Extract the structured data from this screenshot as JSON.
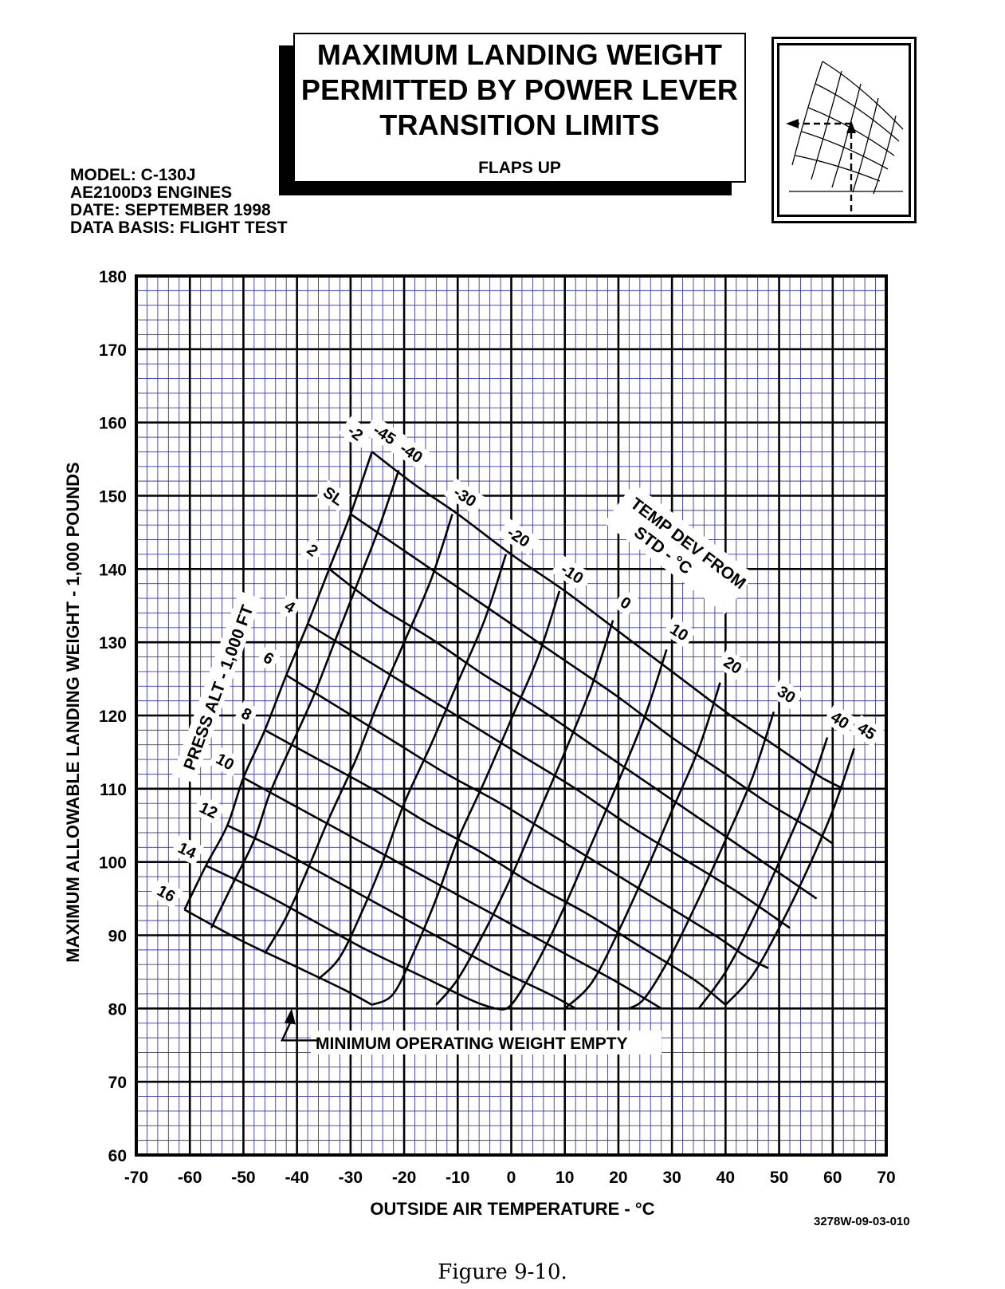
{
  "title": {
    "lines": [
      "MAXIMUM LANDING WEIGHT",
      "PERMITTED BY POWER LEVER",
      "TRANSITION LIMITS"
    ],
    "subtitle": "FLAPS UP"
  },
  "meta": [
    "MODEL: C-130J",
    "AE2100D3 ENGINES",
    "DATE: SEPTEMBER 1998",
    "DATA BASIS: FLIGHT TEST"
  ],
  "figure_caption": "Figure 9-10.",
  "chart_id": "3278W-09-03-010",
  "colors": {
    "grid_fine": "#3a3aa8",
    "ink": "#000000",
    "background": "#ffffff"
  },
  "chart_data": {
    "type": "line",
    "title": "MAXIMUM LANDING WEIGHT PERMITTED BY POWER LEVER TRANSITION LIMITS",
    "subtitle": "FLAPS UP",
    "xlabel": "OUTSIDE AIR TEMPERATURE - °C",
    "ylabel": "MAXIMUM ALLOWABLE LANDING WEIGHT - 1,000 POUNDS",
    "xlim": [
      -70,
      70
    ],
    "ylim": [
      60,
      180
    ],
    "x_ticks": [
      -70,
      -60,
      -50,
      -40,
      -30,
      -20,
      -10,
      0,
      10,
      20,
      30,
      40,
      50,
      60,
      70
    ],
    "y_ticks": [
      60,
      70,
      80,
      90,
      100,
      110,
      120,
      130,
      140,
      150,
      160,
      170,
      180
    ],
    "x_tick_labels": [
      "-70",
      "-60",
      "-50",
      "-40",
      "-30",
      "-20",
      "-10",
      "0",
      "10",
      "20",
      "30",
      "40",
      "50",
      "60",
      "70"
    ],
    "y_tick_labels": [
      "60",
      "70",
      "80",
      "90",
      "100",
      "110",
      "120",
      "130",
      "140",
      "150",
      "160",
      "170",
      "180"
    ],
    "grid": true,
    "grid_minor_step": {
      "x": 2,
      "y": 2
    },
    "pressure_altitude_curves": {
      "label": "PRESS ALT - 1,000 FT",
      "series": [
        {
          "name": "-2",
          "points": [
            [
              -26,
              156
            ],
            [
              -18,
              151.5
            ],
            [
              -10,
              147.5
            ],
            [
              0,
              142
            ],
            [
              10,
              137
            ],
            [
              20,
              131.5
            ],
            [
              30,
              126
            ],
            [
              40,
              120.5
            ],
            [
              48,
              116.5
            ],
            [
              54,
              113.5
            ],
            [
              58,
              111.5
            ],
            [
              62,
              110
            ]
          ]
        },
        {
          "name": "SL",
          "points": [
            [
              -30,
              147.5
            ],
            [
              -20,
              142.5
            ],
            [
              -10,
              137.5
            ],
            [
              0,
              132.5
            ],
            [
              10,
              127.5
            ],
            [
              20,
              122.5
            ],
            [
              30,
              117
            ],
            [
              40,
              112
            ],
            [
              48,
              108
            ],
            [
              56,
              104.5
            ],
            [
              60,
              102.5
            ]
          ]
        },
        {
          "name": "2",
          "points": [
            [
              -34,
              140
            ],
            [
              -25,
              135
            ],
            [
              -15,
              130.5
            ],
            [
              -5,
              125.5
            ],
            [
              5,
              121
            ],
            [
              15,
              116
            ],
            [
              25,
              111
            ],
            [
              35,
              106
            ],
            [
              45,
              101
            ],
            [
              52,
              97.5
            ],
            [
              57,
              95
            ]
          ]
        },
        {
          "name": "4",
          "points": [
            [
              -38,
              132.5
            ],
            [
              -28,
              128
            ],
            [
              -18,
              123.5
            ],
            [
              -8,
              119
            ],
            [
              2,
              114.5
            ],
            [
              12,
              110
            ],
            [
              22,
              105
            ],
            [
              32,
              100.5
            ],
            [
              42,
              96
            ],
            [
              52,
              91
            ]
          ]
        },
        {
          "name": "6",
          "points": [
            [
              -42,
              125.5
            ],
            [
              -32,
              121
            ],
            [
              -22,
              116.5
            ],
            [
              -12,
              112
            ],
            [
              -2,
              108
            ],
            [
              8,
              103.5
            ],
            [
              18,
              99
            ],
            [
              28,
              94.5
            ],
            [
              38,
              90
            ],
            [
              44,
              87
            ],
            [
              48,
              85.5
            ]
          ]
        },
        {
          "name": "8",
          "points": [
            [
              -46,
              118
            ],
            [
              -36,
              114
            ],
            [
              -26,
              110
            ],
            [
              -16,
              105.5
            ],
            [
              -6,
              101.5
            ],
            [
              4,
              97
            ],
            [
              14,
              93
            ],
            [
              24,
              88.5
            ],
            [
              34,
              84
            ],
            [
              40,
              80.5
            ]
          ]
        },
        {
          "name": "10",
          "points": [
            [
              -50,
              111.5
            ],
            [
              -40,
              107.5
            ],
            [
              -30,
              103.5
            ],
            [
              -20,
              99.5
            ],
            [
              -10,
              95.5
            ],
            [
              0,
              91.5
            ],
            [
              10,
              87.5
            ],
            [
              20,
              83.5
            ],
            [
              28,
              80
            ]
          ]
        },
        {
          "name": "12",
          "points": [
            [
              -53,
              105
            ],
            [
              -43,
              101.5
            ],
            [
              -33,
              97.5
            ],
            [
              -23,
              93.5
            ],
            [
              -13,
              89.5
            ],
            [
              -3,
              85.5
            ],
            [
              7,
              82
            ],
            [
              12,
              80
            ]
          ]
        },
        {
          "name": "14",
          "points": [
            [
              -57,
              99.5
            ],
            [
              -47,
              96
            ],
            [
              -37,
              92
            ],
            [
              -27,
              88
            ],
            [
              -17,
              84.5
            ],
            [
              -7,
              81
            ],
            [
              -3,
              80
            ]
          ]
        },
        {
          "name": "16",
          "points": [
            [
              -61,
              93.5
            ],
            [
              -51,
              89.5
            ],
            [
              -41,
              86
            ],
            [
              -31,
              82.5
            ],
            [
              -26,
              80.5
            ]
          ]
        }
      ]
    },
    "temp_dev_curves": {
      "label": "TEMP DEV FROM STD - °C",
      "series": [
        {
          "name": "-45",
          "points": [
            [
              -26,
              156
            ],
            [
              -30,
              147.5
            ],
            [
              -34,
              140
            ],
            [
              -38,
              132.5
            ],
            [
              -42,
              125.5
            ],
            [
              -46,
              118
            ],
            [
              -50,
              111.5
            ],
            [
              -53,
              105
            ],
            [
              -57,
              99.5
            ],
            [
              -61,
              93.5
            ]
          ]
        },
        {
          "name": "-40",
          "points": [
            [
              -21,
              153.5
            ],
            [
              -25,
              145
            ],
            [
              -29,
              137.5
            ],
            [
              -33,
              130
            ],
            [
              -37,
              122.5
            ],
            [
              -41,
              116
            ],
            [
              -45,
              109.5
            ],
            [
              -48,
              103
            ],
            [
              -52,
              97
            ],
            [
              -56,
              91
            ]
          ]
        },
        {
          "name": "-30",
          "points": [
            [
              -11,
              147.5
            ],
            [
              -15,
              138.5
            ],
            [
              -20,
              130
            ],
            [
              -25,
              121.5
            ],
            [
              -29,
              114
            ],
            [
              -34,
              106
            ],
            [
              -38,
              99
            ],
            [
              -42,
              92.5
            ],
            [
              -46,
              87.5
            ]
          ]
        },
        {
          "name": "-20",
          "points": [
            [
              -1,
              142
            ],
            [
              -5,
              133
            ],
            [
              -10,
              124.5
            ],
            [
              -15,
              116
            ],
            [
              -20,
              108
            ],
            [
              -24,
              100
            ],
            [
              -28,
              93
            ],
            [
              -32,
              87
            ],
            [
              -36,
              84
            ]
          ]
        },
        {
          "name": "-10",
          "points": [
            [
              9,
              137
            ],
            [
              5,
              128
            ],
            [
              0,
              119.5
            ],
            [
              -5,
              111
            ],
            [
              -10,
              103
            ],
            [
              -14,
              95
            ],
            [
              -18,
              88
            ],
            [
              -22,
              82
            ],
            [
              -26,
              80.5
            ]
          ]
        },
        {
          "name": "0",
          "points": [
            [
              19,
              133
            ],
            [
              15,
              124
            ],
            [
              10,
              115
            ],
            [
              5,
              106.5
            ],
            [
              0,
              98
            ],
            [
              -5,
              90.5
            ],
            [
              -10,
              84
            ],
            [
              -14,
              80.5
            ]
          ]
        },
        {
          "name": "10",
          "points": [
            [
              29,
              129
            ],
            [
              25,
              120
            ],
            [
              20,
              111
            ],
            [
              15,
              102.5
            ],
            [
              10,
              94
            ],
            [
              5,
              86.5
            ],
            [
              0,
              80.5
            ],
            [
              -3,
              80
            ]
          ]
        },
        {
          "name": "20",
          "points": [
            [
              39,
              124.5
            ],
            [
              35,
              115.5
            ],
            [
              30,
              107
            ],
            [
              25,
              98.5
            ],
            [
              20,
              90.5
            ],
            [
              15,
              83.5
            ],
            [
              10,
              80
            ]
          ]
        },
        {
          "name": "30",
          "points": [
            [
              49,
              120.5
            ],
            [
              45,
              111.5
            ],
            [
              40,
              103
            ],
            [
              35,
              95
            ],
            [
              30,
              87.5
            ],
            [
              25,
              81.5
            ],
            [
              22,
              80
            ]
          ]
        },
        {
          "name": "40",
          "points": [
            [
              59,
              117
            ],
            [
              55,
              108.5
            ],
            [
              50,
              100
            ],
            [
              45,
              92
            ],
            [
              40,
              85
            ],
            [
              35,
              80
            ]
          ]
        },
        {
          "name": "45",
          "points": [
            [
              64,
              115.5
            ],
            [
              60,
              107
            ],
            [
              55,
              98.5
            ],
            [
              50,
              91
            ],
            [
              45,
              84.5
            ],
            [
              40,
              80.5
            ]
          ]
        }
      ]
    },
    "annotations": [
      {
        "text": "MINIMUM OPERATING WEIGHT EMPTY",
        "arrow_to": [
          -41,
          80
        ]
      }
    ]
  }
}
